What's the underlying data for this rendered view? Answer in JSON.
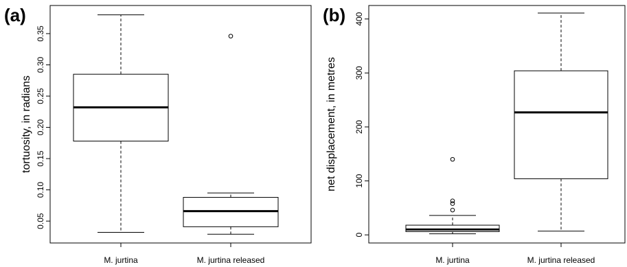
{
  "chart_data": [
    {
      "type": "box",
      "panel_label": "(a)",
      "xlabel": "",
      "ylabel": "tortuosity, in radians",
      "ylim": [
        0.015,
        0.395
      ],
      "yticks": [
        0.05,
        0.1,
        0.15,
        0.2,
        0.25,
        0.3,
        0.35
      ],
      "ytick_labels": [
        "0.05",
        "0.10",
        "0.15",
        "0.20",
        "0.25",
        "0.30",
        "0.35"
      ],
      "categories": [
        "M. jurtina",
        "M. jurtina released"
      ],
      "boxes": [
        {
          "whisker_low": 0.032,
          "q1": 0.178,
          "median": 0.232,
          "q3": 0.285,
          "whisker_high": 0.38,
          "outliers": []
        },
        {
          "whisker_low": 0.029,
          "q1": 0.041,
          "median": 0.066,
          "q3": 0.088,
          "whisker_high": 0.095,
          "outliers": [
            0.346
          ]
        }
      ]
    },
    {
      "type": "box",
      "panel_label": "(b)",
      "xlabel": "",
      "ylabel": "net displacement, in metres",
      "ylim": [
        -15,
        425
      ],
      "yticks": [
        0,
        100,
        200,
        300,
        400
      ],
      "ytick_labels": [
        "0",
        "100",
        "200",
        "300",
        "400"
      ],
      "categories": [
        "M. jurtina",
        "M. jurtina released"
      ],
      "boxes": [
        {
          "whisker_low": 2,
          "q1": 6,
          "median": 10,
          "q3": 18,
          "whisker_high": 36,
          "outliers": [
            46,
            58,
            63,
            140
          ]
        },
        {
          "whisker_low": 7,
          "q1": 104,
          "median": 227,
          "q3": 304,
          "whisker_high": 411,
          "outliers": []
        }
      ]
    }
  ]
}
